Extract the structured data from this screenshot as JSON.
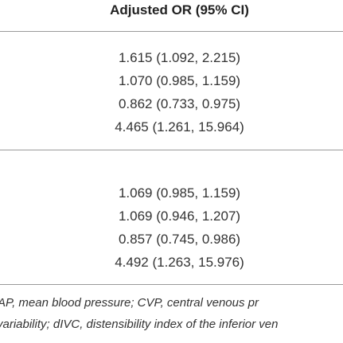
{
  "table": {
    "header": "Adjusted OR (95% CI)",
    "groups": [
      [
        "1.615 (1.092, 2.215)",
        "1.070 (0.985, 1.159)",
        "0.862 (0.733, 0.975)",
        "4.465 (1.261, 15.964)"
      ],
      [
        "1.069 (0.985, 1.159)",
        "1.069 (0.946, 1.207)",
        "0.857 (0.745, 0.986)",
        "4.492 (1.263, 15.976)"
      ]
    ]
  },
  "footnote": [
    "AP, mean blood pressure; CVP, central venous pr",
    "variability; dIVC, distensibility index of the inferior ven"
  ]
}
